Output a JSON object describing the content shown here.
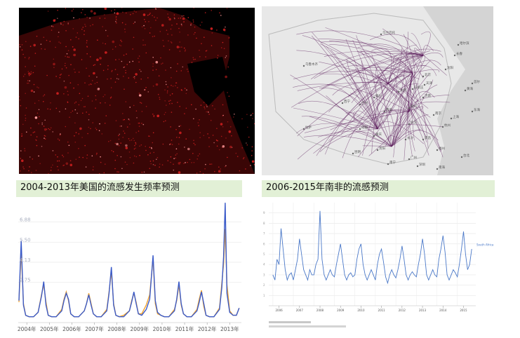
{
  "captions": {
    "left": "2004-2013年美国的流感发生频率预测",
    "right": "2006-2015年南非的流感预测"
  },
  "map_labels": [
    "乌鲁木齐",
    "乌兰巴托",
    "哈尔滨",
    "长春",
    "沈阳",
    "北京",
    "天津",
    "石家庄",
    "太原",
    "济南",
    "郑州",
    "西安",
    "兰州",
    "西宁",
    "银川",
    "成都",
    "重庆",
    "武汉",
    "南京",
    "上海",
    "杭州",
    "长沙",
    "南昌",
    "福州",
    "广州",
    "深圳",
    "南宁",
    "昆明",
    "贵阳",
    "拉萨",
    "台北",
    "首尔",
    "东海",
    "黄海",
    "南海"
  ],
  "colors": {
    "night_bg": "#000000",
    "night_light": "#cc1f1f",
    "map_bg": "#e8e8e8",
    "route": "#5a1a5a",
    "us_predicted": "#3b5bc9",
    "us_actual": "#f2a530",
    "sa_line": "#4a78c8",
    "caption_bg": "#e2f0d6"
  },
  "chart_data": [
    {
      "type": "line",
      "title": "",
      "xlabel": "",
      "ylabel": "",
      "categories": [
        "2004年",
        "2005年",
        "2006年",
        "2007年",
        "2008年",
        "2009年",
        "2010年",
        "2011年",
        "2012年",
        "2013年"
      ],
      "y_ticks": [
        "6.88",
        "5.50",
        "4.13",
        "2.75"
      ],
      "ylim": [
        0,
        8.3
      ],
      "grid": true,
      "series": [
        {
          "name": "",
          "color": "#3b5bc9",
          "x": [
            2003.85,
            2003.95,
            2004.05,
            2004.15,
            2004.3,
            2004.5,
            2004.7,
            2004.85,
            2004.95,
            2005.05,
            2005.15,
            2005.3,
            2005.5,
            2005.75,
            2005.85,
            2005.95,
            2006.05,
            2006.15,
            2006.3,
            2006.5,
            2006.75,
            2006.85,
            2006.95,
            2007.05,
            2007.15,
            2007.3,
            2007.5,
            2007.75,
            2007.85,
            2007.95,
            2008.05,
            2008.15,
            2008.3,
            2008.5,
            2008.75,
            2008.85,
            2008.95,
            2009.05,
            2009.15,
            2009.3,
            2009.5,
            2009.65,
            2009.8,
            2009.9,
            2010.0,
            2010.15,
            2010.3,
            2010.5,
            2010.75,
            2010.85,
            2010.95,
            2011.05,
            2011.15,
            2011.3,
            2011.5,
            2011.75,
            2011.85,
            2011.95,
            2012.05,
            2012.15,
            2012.3,
            2012.5,
            2012.75,
            2012.85,
            2012.93,
            2013.0,
            2013.08,
            2013.2,
            2013.35,
            2013.5,
            2013.62
          ],
          "y": [
            1.5,
            5.6,
            1.2,
            0.5,
            0.4,
            0.4,
            0.7,
            1.8,
            2.8,
            1.2,
            0.5,
            0.4,
            0.4,
            0.8,
            1.5,
            2.0,
            1.6,
            0.6,
            0.4,
            0.4,
            0.8,
            1.3,
            1.9,
            1.2,
            0.6,
            0.4,
            0.4,
            0.8,
            2.0,
            3.8,
            1.2,
            0.5,
            0.4,
            0.4,
            0.8,
            1.4,
            2.1,
            1.3,
            0.6,
            0.5,
            0.9,
            1.6,
            4.6,
            1.5,
            0.7,
            0.5,
            0.4,
            0.4,
            0.8,
            1.6,
            2.8,
            1.3,
            0.6,
            0.4,
            0.4,
            0.8,
            1.4,
            2.1,
            1.3,
            0.5,
            0.4,
            0.4,
            0.9,
            2.4,
            4.5,
            8.2,
            2.0,
            0.7,
            0.5,
            0.5,
            1.0
          ]
        },
        {
          "name": "",
          "color": "#f2a530",
          "x": [
            2003.85,
            2003.95,
            2004.05,
            2004.15,
            2004.3,
            2004.5,
            2004.7,
            2004.85,
            2004.95,
            2005.05,
            2005.15,
            2005.3,
            2005.5,
            2005.75,
            2005.85,
            2005.95,
            2006.05,
            2006.15,
            2006.3,
            2006.5,
            2006.75,
            2006.85,
            2006.95,
            2007.05,
            2007.15,
            2007.3,
            2007.5,
            2007.75,
            2007.85,
            2007.95,
            2008.05,
            2008.15,
            2008.3,
            2008.5,
            2008.75,
            2008.85,
            2008.95,
            2009.05,
            2009.15,
            2009.3,
            2009.5,
            2009.65,
            2009.8,
            2009.9,
            2010.0,
            2010.15,
            2010.3,
            2010.5,
            2010.75,
            2010.85,
            2010.95,
            2011.05,
            2011.15,
            2011.3,
            2011.5,
            2011.75,
            2011.85,
            2011.95,
            2012.05,
            2012.15,
            2012.3,
            2012.5,
            2012.75,
            2012.85,
            2012.93,
            2013.0,
            2013.08,
            2013.2,
            2013.35,
            2013.5,
            2013.62
          ],
          "y": [
            1.4,
            5.0,
            1.3,
            0.5,
            0.4,
            0.4,
            0.7,
            1.9,
            2.6,
            1.4,
            0.5,
            0.4,
            0.4,
            0.9,
            1.6,
            2.1,
            1.5,
            0.6,
            0.4,
            0.4,
            0.8,
            1.3,
            2.0,
            1.3,
            0.6,
            0.4,
            0.4,
            0.9,
            2.1,
            3.5,
            1.3,
            0.5,
            0.4,
            0.5,
            0.8,
            1.5,
            2.0,
            1.4,
            0.6,
            0.6,
            1.2,
            1.9,
            4.4,
            1.3,
            0.6,
            0.5,
            0.4,
            0.4,
            0.9,
            1.5,
            2.6,
            1.2,
            0.6,
            0.4,
            0.4,
            0.9,
            1.6,
            2.2,
            1.1,
            0.5,
            0.4,
            0.4,
            1.0,
            2.7,
            4.0,
            6.4,
            2.6,
            0.8,
            0.5,
            0.5,
            1.0
          ]
        }
      ]
    },
    {
      "type": "line",
      "title": "",
      "xlabel": "",
      "ylabel": "",
      "categories": [
        "2006",
        "2007",
        "2008",
        "2009",
        "2010",
        "2011",
        "2012",
        "2013",
        "2014",
        "2015"
      ],
      "legend": "South Africa",
      "legend_position": "right",
      "grid": true,
      "ylim": [
        0,
        10
      ],
      "series": [
        {
          "name": "South Africa",
          "color": "#4a78c8",
          "x": [
            2006.0,
            2006.1,
            2006.2,
            2006.3,
            2006.4,
            2006.5,
            2006.6,
            2006.7,
            2006.8,
            2006.9,
            2007.0,
            2007.1,
            2007.2,
            2007.3,
            2007.4,
            2007.5,
            2007.6,
            2007.7,
            2007.8,
            2007.9,
            2008.0,
            2008.1,
            2008.2,
            2008.3,
            2008.4,
            2008.5,
            2008.6,
            2008.7,
            2008.8,
            2008.9,
            2009.0,
            2009.1,
            2009.2,
            2009.3,
            2009.4,
            2009.5,
            2009.6,
            2009.7,
            2009.8,
            2009.9,
            2010.0,
            2010.1,
            2010.2,
            2010.3,
            2010.4,
            2010.5,
            2010.6,
            2010.7,
            2010.8,
            2010.9,
            2011.0,
            2011.1,
            2011.2,
            2011.3,
            2011.4,
            2011.5,
            2011.6,
            2011.7,
            2011.8,
            2011.9,
            2012.0,
            2012.1,
            2012.2,
            2012.3,
            2012.4,
            2012.5,
            2012.6,
            2012.7,
            2012.8,
            2012.9,
            2013.0,
            2013.1,
            2013.2,
            2013.3,
            2013.4,
            2013.5,
            2013.6,
            2013.7,
            2013.8,
            2013.9,
            2014.0,
            2014.1,
            2014.2,
            2014.3,
            2014.4,
            2014.5,
            2014.6,
            2014.7,
            2014.8,
            2014.9,
            2015.0,
            2015.1,
            2015.2,
            2015.3,
            2015.4,
            2015.5,
            2015.6,
            2015.7
          ],
          "y": [
            3.0,
            2.5,
            4.5,
            4.0,
            7.5,
            5.5,
            3.5,
            2.5,
            3.0,
            3.2,
            2.5,
            3.5,
            4.5,
            6.5,
            5.0,
            3.5,
            3.0,
            2.5,
            3.5,
            3.0,
            3.0,
            4.0,
            4.5,
            9.2,
            4.5,
            3.0,
            2.5,
            3.0,
            3.5,
            3.0,
            2.8,
            4.0,
            5.0,
            6.0,
            4.5,
            3.0,
            2.5,
            3.0,
            3.2,
            2.8,
            3.0,
            4.5,
            5.5,
            6.0,
            4.0,
            3.0,
            2.5,
            3.0,
            3.5,
            3.0,
            2.5,
            4.0,
            5.0,
            5.5,
            4.2,
            2.8,
            2.2,
            3.0,
            3.5,
            3.0,
            2.7,
            3.5,
            4.5,
            5.8,
            4.5,
            3.0,
            2.5,
            3.0,
            3.3,
            3.0,
            2.8,
            4.0,
            5.0,
            6.5,
            5.0,
            3.0,
            2.5,
            3.0,
            3.5,
            3.0,
            2.8,
            4.5,
            5.5,
            6.8,
            5.2,
            3.0,
            2.5,
            3.0,
            3.5,
            3.2,
            2.8,
            4.0,
            5.5,
            7.2,
            5.0,
            3.5,
            4.0,
            5.5
          ]
        }
      ]
    }
  ]
}
